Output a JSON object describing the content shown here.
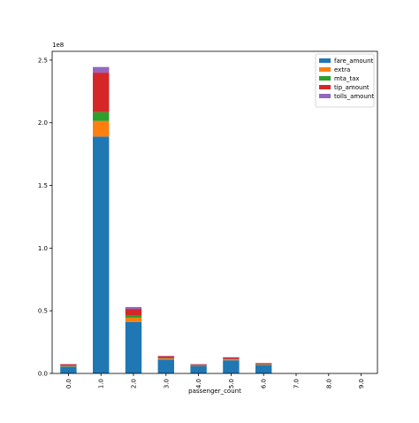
{
  "chart_data": {
    "type": "stacked-bar",
    "categories": [
      "0.0",
      "1.0",
      "2.0",
      "3.0",
      "4.0",
      "5.0",
      "6.0",
      "7.0",
      "8.0",
      "9.0"
    ],
    "x_label": "passenger_count",
    "y_offset_label": "1e8",
    "series": [
      {
        "name": "fare_amount",
        "color": "#1f77b4",
        "values": [
          5500000,
          189000000,
          41000000,
          11000000,
          6000000,
          10500000,
          6800000,
          0,
          0,
          0
        ]
      },
      {
        "name": "extra",
        "color": "#ff7f0e",
        "values": [
          500000,
          12500000,
          3500000,
          800000,
          400000,
          600000,
          400000,
          0,
          0,
          0
        ]
      },
      {
        "name": "mta_tax",
        "color": "#2ca02c",
        "values": [
          300000,
          7000000,
          1500000,
          400000,
          200000,
          400000,
          200000,
          0,
          0,
          0
        ]
      },
      {
        "name": "tip_amount",
        "color": "#d62728",
        "values": [
          1000000,
          31500000,
          5500000,
          1500000,
          700000,
          1300000,
          800000,
          0,
          0,
          0
        ]
      },
      {
        "name": "tolls_amount",
        "color": "#9467bd",
        "values": [
          200000,
          4500000,
          1500000,
          300000,
          200000,
          200000,
          100000,
          0,
          0,
          0
        ]
      }
    ],
    "ylim": [
      0,
      257000000
    ],
    "yticks": [
      {
        "value": 0,
        "label": "0.0"
      },
      {
        "value": 50000000,
        "label": "0.5"
      },
      {
        "value": 100000000,
        "label": "1.0"
      },
      {
        "value": 150000000,
        "label": "1.5"
      },
      {
        "value": 200000000,
        "label": "2.0"
      },
      {
        "value": 250000000,
        "label": "2.5"
      }
    ],
    "legend": "upper right"
  }
}
